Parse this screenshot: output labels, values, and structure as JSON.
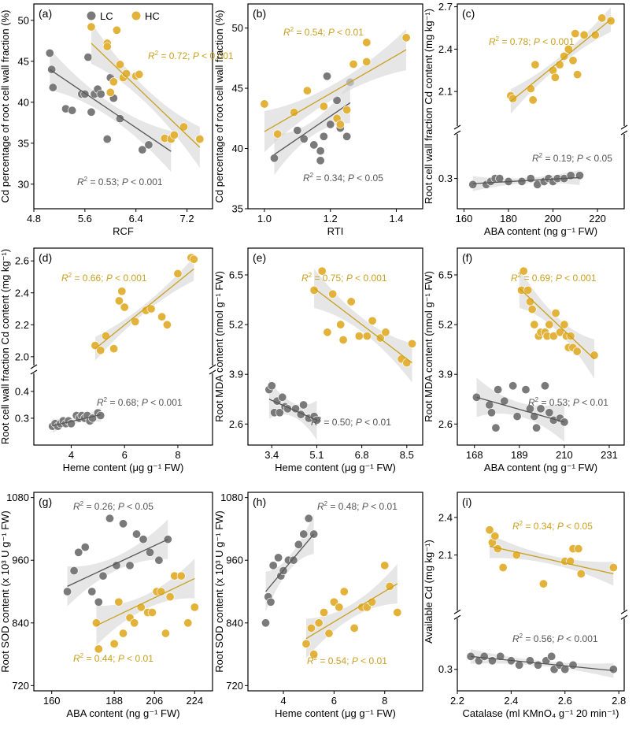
{
  "colors": {
    "lc": "#7a7a7a",
    "hc": "#e2b23a",
    "hc_text": "#c9a020",
    "lc_text": "#555555",
    "band": "#d9d9d9"
  },
  "legend": {
    "lc": "LC",
    "hc": "HC"
  },
  "chart_data": [
    {
      "id": "a",
      "panel_label": "(a)",
      "type": "scatter",
      "xlabel": "RCF",
      "ylabel": "Cd percentage of root cell wall fraction (%)",
      "xlim": [
        4.8,
        7.6
      ],
      "ylim": [
        27,
        52
      ],
      "xticks": [
        "4.8",
        "5.6",
        "6.4",
        "7.2"
      ],
      "yticks": [
        "30",
        "35",
        "40",
        "45",
        "50"
      ],
      "series": [
        {
          "name": "LC",
          "x": [
            5.05,
            5.08,
            5.1,
            5.3,
            5.4,
            5.55,
            5.6,
            5.65,
            5.7,
            5.75,
            5.8,
            5.85,
            5.95,
            6.0,
            6.05,
            6.15,
            6.5,
            6.6,
            6.95
          ],
          "y": [
            46.0,
            44.0,
            41.8,
            39.2,
            39.0,
            41.0,
            41.0,
            45.5,
            38.8,
            41.0,
            41.6,
            41.0,
            35.5,
            43.0,
            40.5,
            38.0,
            34.2,
            34.8,
            35.6
          ],
          "fit": [
            5.05,
            44.0,
            6.95,
            34.0
          ],
          "stats": "R² = 0.53;  P < 0.001"
        },
        {
          "name": "HC",
          "x": [
            5.7,
            5.95,
            5.95,
            6.0,
            6.05,
            6.1,
            6.15,
            6.2,
            6.25,
            6.4,
            6.45,
            6.85,
            6.95,
            7.0,
            7.15,
            7.4
          ],
          "y": [
            49.2,
            47.2,
            46.8,
            41.2,
            42.5,
            48.8,
            44.6,
            43.0,
            43.5,
            43.2,
            43.4,
            35.6,
            35.5,
            36.0,
            37.0,
            35.5
          ],
          "fit": [
            5.7,
            47.2,
            7.4,
            34.5
          ],
          "stats": "R² = 0.72;  P < 0.001"
        }
      ]
    },
    {
      "id": "b",
      "panel_label": "(b)",
      "type": "scatter",
      "xlabel": "RTI",
      "ylabel": "Cd percentage of root cell wall fraction (%)",
      "xlim": [
        0.95,
        1.48
      ],
      "ylim": [
        35,
        52
      ],
      "xticks": [
        "1.0",
        "1.2",
        "1.4"
      ],
      "yticks": [
        "35",
        "40",
        "45",
        "50"
      ],
      "series": [
        {
          "name": "LC",
          "x": [
            1.03,
            1.1,
            1.12,
            1.15,
            1.17,
            1.17,
            1.18,
            1.19,
            1.2,
            1.22,
            1.23,
            1.25,
            1.26
          ],
          "y": [
            39.2,
            41.5,
            40.8,
            40.3,
            39.8,
            39.0,
            41.0,
            46.0,
            42.0,
            44.0,
            41.7,
            41.0,
            45.5
          ],
          "fit": [
            1.03,
            39.5,
            1.26,
            43.8
          ],
          "stats": "R² = 0.34;  P < 0.05"
        },
        {
          "name": "HC",
          "x": [
            1.0,
            1.04,
            1.09,
            1.13,
            1.18,
            1.22,
            1.23,
            1.25,
            1.27,
            1.31,
            1.31,
            1.43
          ],
          "y": [
            43.7,
            41.2,
            43.0,
            44.8,
            43.5,
            42.5,
            42.0,
            43.2,
            47.0,
            48.8,
            47.2,
            49.2
          ],
          "fit": [
            1.0,
            41.4,
            1.43,
            48.2
          ],
          "stats": "R² = 0.54;  P < 0.01"
        }
      ]
    },
    {
      "id": "c",
      "panel_label": "(c)",
      "type": "scatter",
      "broken_y": true,
      "xlabel": "ABA content (ng g⁻¹ FW)",
      "ylabel": "Root cell wall fraction Cd content (mg kg⁻¹)",
      "xlim": [
        157,
        232
      ],
      "ylim_upper": [
        1.85,
        2.72
      ],
      "ylim_lower": [
        0.2,
        0.45
      ],
      "xticks": [
        "160",
        "180",
        "200",
        "220"
      ],
      "yticks_upper": [
        "2.1",
        "2.4",
        "2.7"
      ],
      "yticks_lower": [
        "0.3"
      ],
      "series": [
        {
          "name": "LC",
          "x": [
            164,
            170,
            172,
            174,
            176,
            180,
            186,
            190,
            193,
            196,
            198,
            200,
            202,
            205,
            208,
            212
          ],
          "y": [
            0.28,
            0.28,
            0.29,
            0.3,
            0.3,
            0.29,
            0.29,
            0.3,
            0.28,
            0.29,
            0.3,
            0.29,
            0.3,
            0.3,
            0.31,
            0.31
          ],
          "fit": [
            164,
            0.283,
            212,
            0.303
          ],
          "stats": "R² = 0.19;  P < 0.05"
        },
        {
          "name": "HC",
          "x": [
            181,
            182,
            190,
            191,
            192,
            200,
            201,
            203,
            205,
            207,
            209,
            210,
            211,
            214,
            219,
            222,
            226
          ],
          "y": [
            2.07,
            2.05,
            2.12,
            2.04,
            2.29,
            2.25,
            2.2,
            2.29,
            2.35,
            2.4,
            2.32,
            2.51,
            2.22,
            2.5,
            2.5,
            2.62,
            2.6
          ],
          "fit": [
            181,
            2.03,
            226,
            2.61
          ],
          "stats": "R² = 0.78;  P < 0.001"
        }
      ]
    },
    {
      "id": "d",
      "panel_label": "(d)",
      "type": "scatter",
      "broken_y": true,
      "xlabel": "Heme content (μg g⁻¹ FW)",
      "ylabel": "Root cell wall fraction Cd content  (mg kg⁻¹)",
      "xlim": [
        2.6,
        9.3
      ],
      "ylim_upper": [
        1.94,
        2.68
      ],
      "ylim_lower": [
        0.2,
        0.47
      ],
      "xticks": [
        "4",
        "6",
        "8"
      ],
      "yticks_upper": [
        "2.0",
        "2.2",
        "2.4",
        "2.6"
      ],
      "yticks_lower": [
        "0.3",
        "0.4"
      ],
      "series": [
        {
          "name": "LC",
          "x": [
            3.3,
            3.4,
            3.5,
            3.6,
            3.7,
            3.8,
            3.9,
            4.0,
            4.2,
            4.3,
            4.4,
            4.5,
            4.6,
            4.7,
            4.8,
            5.0,
            5.1
          ],
          "y": [
            0.27,
            0.28,
            0.27,
            0.28,
            0.29,
            0.28,
            0.29,
            0.28,
            0.31,
            0.3,
            0.31,
            0.3,
            0.31,
            0.29,
            0.3,
            0.32,
            0.31
          ],
          "fit": [
            3.3,
            0.272,
            5.1,
            0.313
          ],
          "stats": "R² = 0.68;  P < 0.001"
        },
        {
          "name": "HC",
          "x": [
            4.9,
            5.1,
            5.3,
            5.6,
            5.8,
            5.9,
            6.0,
            6.4,
            6.8,
            7.0,
            7.4,
            7.6,
            8.0,
            8.5,
            8.6
          ],
          "y": [
            2.07,
            2.04,
            2.13,
            2.05,
            2.35,
            2.41,
            2.31,
            2.22,
            2.29,
            2.3,
            2.25,
            2.2,
            2.52,
            2.62,
            2.61
          ],
          "fit": [
            4.9,
            2.05,
            8.6,
            2.55
          ],
          "stats": "R² = 0.66;  P < 0.001"
        }
      ]
    },
    {
      "id": "e",
      "panel_label": "(e)",
      "type": "scatter",
      "xlabel": "Heme content (μg g⁻¹ FW)",
      "ylabel": "Root MDA content (nmol g⁻¹ FW)",
      "xlim": [
        2.5,
        9.1
      ],
      "ylim": [
        2.05,
        7.2
      ],
      "xticks": [
        "3.4",
        "5.1",
        "6.8",
        "8.5"
      ],
      "yticks": [
        "2.6",
        "3.9",
        "5.2",
        "6.5"
      ],
      "series": [
        {
          "name": "LC",
          "x": [
            3.3,
            3.4,
            3.5,
            3.6,
            3.7,
            3.8,
            3.9,
            4.0,
            4.3,
            4.5,
            4.6,
            4.8,
            5.0,
            5.1
          ],
          "y": [
            3.5,
            3.6,
            2.9,
            3.2,
            2.9,
            3.3,
            3.05,
            3.0,
            3.0,
            2.85,
            3.1,
            2.75,
            2.8,
            2.7
          ],
          "fit": [
            3.3,
            3.25,
            5.1,
            2.7
          ],
          "stats": "R² = 0.50;  P < 0.01"
        },
        {
          "name": "HC",
          "x": [
            5.0,
            5.3,
            5.5,
            5.7,
            6.0,
            6.1,
            6.4,
            6.7,
            7.0,
            7.2,
            7.5,
            7.7,
            8.3,
            8.5,
            8.7
          ],
          "y": [
            6.1,
            6.6,
            5.0,
            6.0,
            5.2,
            4.8,
            5.8,
            4.9,
            4.9,
            5.3,
            4.85,
            5.0,
            4.3,
            4.2,
            4.7
          ],
          "fit": [
            5.0,
            6.15,
            8.7,
            4.2
          ],
          "stats": "R² = 0.75;  P < 0.001"
        }
      ]
    },
    {
      "id": "f",
      "panel_label": "(f)",
      "type": "scatter",
      "xlabel": "ABA content (ng g⁻¹ FW)",
      "ylabel": "Root MDA content (nmol g⁻¹ FW)",
      "xlim": [
        160,
        238
      ],
      "ylim": [
        2.05,
        7.2
      ],
      "xticks": [
        "168",
        "189",
        "210",
        "231"
      ],
      "yticks": [
        "2.6",
        "3.9",
        "5.2",
        "6.5"
      ],
      "series": [
        {
          "name": "LC",
          "x": [
            169,
            175,
            176,
            178,
            179,
            182,
            186,
            188,
            192,
            194,
            196,
            197,
            199,
            201,
            203,
            205,
            208,
            210
          ],
          "y": [
            3.3,
            3.1,
            2.9,
            2.5,
            3.5,
            3.2,
            3.6,
            2.8,
            3.5,
            3.0,
            2.8,
            2.5,
            3.0,
            3.6,
            2.9,
            2.7,
            2.75,
            2.65
          ],
          "fit": [
            169,
            3.3,
            210,
            2.65
          ],
          "stats": "R² = 0.53;  P < 0.01"
        },
        {
          "name": "HC",
          "x": [
            190,
            191,
            193,
            194,
            195,
            196,
            198,
            199,
            201,
            202,
            203,
            205,
            206,
            208,
            210,
            211,
            212,
            213,
            214,
            216,
            224
          ],
          "y": [
            6.1,
            6.6,
            6.1,
            5.8,
            5.6,
            5.2,
            4.9,
            5.0,
            5.0,
            4.9,
            5.2,
            4.9,
            5.5,
            5.0,
            5.2,
            4.9,
            4.6,
            4.9,
            4.6,
            4.5,
            4.4
          ],
          "fit": [
            189,
            6.15,
            224,
            4.3
          ],
          "stats": "R² = 0.69;  P < 0.001"
        }
      ]
    },
    {
      "id": "g",
      "panel_label": "(g)",
      "type": "scatter",
      "xlabel": "ABA content (ng g⁻¹ FW)",
      "ylabel": "Root SOD content (x 10³ U g⁻¹ FW)",
      "xlim": [
        152,
        232
      ],
      "ylim": [
        710,
        1090
      ],
      "xticks": [
        "160",
        "188",
        "206",
        "224"
      ],
      "yticks": [
        "720",
        "840",
        "960",
        "1080"
      ],
      "series": [
        {
          "name": "LC",
          "x": [
            167,
            170,
            172,
            175,
            178,
            181,
            183,
            186,
            189,
            192,
            195,
            198,
            201,
            204,
            208,
            212
          ],
          "y": [
            900,
            940,
            975,
            985,
            900,
            880,
            930,
            1040,
            950,
            1030,
            950,
            1010,
            1000,
            975,
            960,
            1000
          ],
          "fit": [
            167,
            910,
            212,
            1000
          ],
          "stats": "R² = 0.26;  P < 0.05"
        },
        {
          "name": "HC",
          "x": [
            180,
            181,
            188,
            190,
            192,
            195,
            197,
            200,
            203,
            205,
            207,
            209,
            211,
            213,
            215,
            218,
            221,
            224
          ],
          "y": [
            840,
            790,
            800,
            880,
            820,
            850,
            840,
            870,
            860,
            860,
            900,
            900,
            820,
            890,
            930,
            930,
            840,
            870
          ],
          "fit": [
            180,
            835,
            224,
            925
          ],
          "stats": "R² = 0.44;  P < 0.01"
        }
      ]
    },
    {
      "id": "h",
      "panel_label": "(h)",
      "type": "scatter",
      "xlabel": "Heme content (μg g⁻¹ FW)",
      "ylabel": "Root SOD content (x 10³ U g⁻¹ FW)",
      "xlim": [
        2.6,
        9.5
      ],
      "ylim": [
        710,
        1090
      ],
      "xticks": [
        "4",
        "6",
        "8"
      ],
      "yticks": [
        "720",
        "840",
        "960",
        "1080"
      ],
      "series": [
        {
          "name": "LC",
          "x": [
            3.3,
            3.4,
            3.5,
            3.6,
            3.8,
            3.9,
            4.0,
            4.2,
            4.4,
            4.6,
            4.8,
            5.0,
            5.2
          ],
          "y": [
            840,
            890,
            880,
            950,
            965,
            930,
            940,
            960,
            960,
            990,
            1010,
            1040,
            1010
          ],
          "fit": [
            3.3,
            900,
            5.2,
            1010
          ],
          "stats": "R² = 0.48;  P < 0.01"
        },
        {
          "name": "HC",
          "x": [
            4.9,
            5.1,
            5.2,
            5.4,
            5.6,
            5.8,
            6.0,
            6.2,
            6.4,
            6.8,
            7.1,
            7.3,
            7.5,
            8.0,
            8.2,
            8.5
          ],
          "y": [
            800,
            830,
            780,
            840,
            860,
            820,
            880,
            870,
            900,
            830,
            870,
            870,
            880,
            950,
            910,
            860
          ],
          "fit": [
            4.9,
            810,
            8.5,
            915
          ],
          "stats": "R² = 0.54;  P < 0.01"
        }
      ]
    },
    {
      "id": "i",
      "panel_label": "(i)",
      "type": "scatter",
      "broken_y": true,
      "xlabel": "Catalase (ml KMnO₄ g⁻¹ 20 min⁻¹)",
      "ylabel": "Available Cd (mg kg⁻¹)",
      "xlim": [
        2.2,
        2.82
      ],
      "ylim_upper": [
        1.65,
        2.6
      ],
      "ylim_lower": [
        0.25,
        0.42
      ],
      "xticks": [
        "2.2",
        "2.4",
        "2.6",
        "2.8"
      ],
      "yticks_upper": [
        "2.1",
        "2.4"
      ],
      "yticks_lower": [
        "0.3"
      ],
      "series": [
        {
          "name": "LC",
          "x": [
            2.25,
            2.28,
            2.3,
            2.33,
            2.36,
            2.4,
            2.43,
            2.47,
            2.5,
            2.53,
            2.55,
            2.56,
            2.58,
            2.6,
            2.63,
            2.78
          ],
          "y": [
            0.33,
            0.32,
            0.33,
            0.32,
            0.33,
            0.32,
            0.31,
            0.32,
            0.31,
            0.32,
            0.33,
            0.3,
            0.31,
            0.3,
            0.31,
            0.3
          ],
          "fit": [
            2.25,
            0.33,
            2.78,
            0.297
          ],
          "stats": "R² = 0.56;  P < 0.001"
        },
        {
          "name": "HC",
          "x": [
            2.32,
            2.33,
            2.34,
            2.35,
            2.37,
            2.42,
            2.52,
            2.6,
            2.62,
            2.63,
            2.65,
            2.66,
            2.78
          ],
          "y": [
            2.3,
            2.2,
            2.25,
            2.15,
            2.0,
            2.1,
            1.87,
            2.05,
            2.05,
            2.15,
            2.15,
            1.95,
            2.0
          ],
          "fit": [
            2.32,
            2.17,
            2.78,
            1.95
          ],
          "stats": "R² = 0.34;  P < 0.05"
        }
      ]
    }
  ]
}
